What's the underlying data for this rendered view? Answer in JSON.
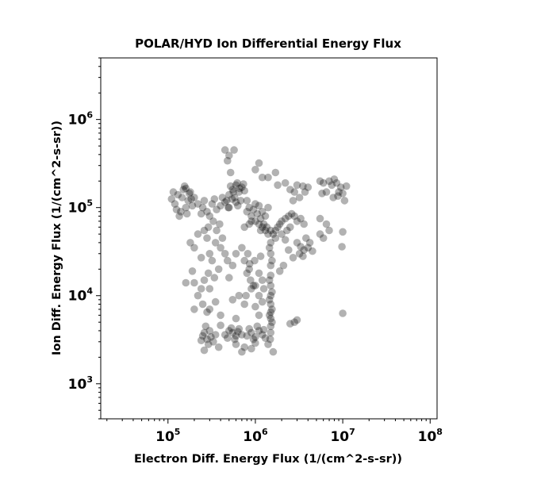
{
  "chart_data": {
    "type": "scatter",
    "title": "POLAR/HYD  Ion Differential Energy Flux",
    "xlabel": "Electron Diff. Energy Flux (1/(cm^2-s-sr))",
    "ylabel": "Ion Diff. Energy Flux (1/(cm^2-s-sr))",
    "xscale": "log",
    "yscale": "log",
    "xlim": [
      17000,
      120000000
    ],
    "ylim": [
      400,
      5000000
    ],
    "xticks": [
      {
        "value": 100000,
        "base": "10",
        "exp": "5"
      },
      {
        "value": 1000000,
        "base": "10",
        "exp": "6"
      },
      {
        "value": 10000000,
        "base": "10",
        "exp": "7"
      },
      {
        "value": 100000000,
        "base": "10",
        "exp": "8"
      }
    ],
    "yticks": [
      {
        "value": 1000,
        "base": "10",
        "exp": "3"
      },
      {
        "value": 10000,
        "base": "10",
        "exp": "4"
      },
      {
        "value": 100000,
        "base": "10",
        "exp": "5"
      },
      {
        "value": 1000000,
        "base": "10",
        "exp": "6"
      }
    ],
    "grid": false,
    "marker_color": "#000000",
    "marker_opacity": 0.3,
    "series": [
      {
        "points": [
          [
            150000.0,
            160000.0
          ],
          [
            130000.0,
            140000.0
          ],
          [
            170000.0,
            120000.0
          ],
          [
            120000.0,
            110000.0
          ],
          [
            160000.0,
            100000.0
          ],
          [
            140000.0,
            90000.0
          ],
          [
            180000.0,
            150000.0
          ],
          [
            200000.0,
            130000.0
          ],
          [
            110000.0,
            125000.0
          ],
          [
            155000.0,
            175000.0
          ],
          [
            135000.0,
            80000.0
          ],
          [
            165000.0,
            85000.0
          ],
          [
            190000.0,
            105000.0
          ],
          [
            220000.0,
            110000.0
          ],
          [
            145000.0,
            130000.0
          ],
          [
            175000.0,
            145000.0
          ],
          [
            125000.0,
            95000.0
          ],
          [
            115000.0,
            150000.0
          ],
          [
            160000.0,
            165000.0
          ],
          [
            185000.0,
            125000.0
          ],
          [
            250000.0,
            100000.0
          ],
          [
            280000.0,
            90000.0
          ],
          [
            320000.0,
            110000.0
          ],
          [
            360000.0,
            95000.0
          ],
          [
            400000.0,
            105000.0
          ],
          [
            450000.0,
            115000.0
          ],
          [
            240000.0,
            85000.0
          ],
          [
            300000.0,
            80000.0
          ],
          [
            260000.0,
            120000.0
          ],
          [
            340000.0,
            125000.0
          ],
          [
            500000.0,
            140000.0
          ],
          [
            550000.0,
            160000.0
          ],
          [
            600000.0,
            180000.0
          ],
          [
            650000.0,
            150000.0
          ],
          [
            700000.0,
            170000.0
          ],
          [
            580000.0,
            130000.0
          ],
          [
            680000.0,
            120000.0
          ],
          [
            520000.0,
            175000.0
          ],
          [
            620000.0,
            190000.0
          ],
          [
            730000.0,
            185000.0
          ],
          [
            470000.0,
            120000.0
          ],
          [
            630000.0,
            105000.0
          ],
          [
            750000.0,
            155000.0
          ],
          [
            560000.0,
            150000.0
          ],
          [
            660000.0,
            165000.0
          ],
          [
            490000.0,
            100000.0
          ],
          [
            540000.0,
            125000.0
          ],
          [
            420000.0,
            130000.0
          ],
          [
            500000.0,
            100000.0
          ],
          [
            600000.0,
            115000.0
          ],
          [
            800000.0,
            90000.0
          ],
          [
            900000.0,
            80000.0
          ],
          [
            1000000.0,
            70000.0
          ],
          [
            1100000.0,
            65000.0
          ],
          [
            1200000.0,
            60000.0
          ],
          [
            1300000.0,
            55000.0
          ],
          [
            1400000.0,
            50000.0
          ],
          [
            850000.0,
            100000.0
          ],
          [
            950000.0,
            95000.0
          ],
          [
            1050000.0,
            85000.0
          ],
          [
            1150000.0,
            75000.0
          ],
          [
            1250000.0,
            65000.0
          ],
          [
            1350000.0,
            60000.0
          ],
          [
            1500000.0,
            55000.0
          ],
          [
            1600000.0,
            50000.0
          ],
          [
            1700000.0,
            55000.0
          ],
          [
            1800000.0,
            60000.0
          ],
          [
            1900000.0,
            65000.0
          ],
          [
            2000000.0,
            70000.0
          ],
          [
            2200000.0,
            75000.0
          ],
          [
            2400000.0,
            80000.0
          ],
          [
            2600000.0,
            85000.0
          ],
          [
            2800000.0,
            80000.0
          ],
          [
            3000000.0,
            70000.0
          ],
          [
            3300000.0,
            75000.0
          ],
          [
            3600000.0,
            65000.0
          ],
          [
            2500000.0,
            60000.0
          ],
          [
            2000000.0,
            50000.0
          ],
          [
            2300000.0,
            55000.0
          ],
          [
            1700000.0,
            45000.0
          ],
          [
            1400000.0,
            100000.0
          ],
          [
            1200000.0,
            90000.0
          ],
          [
            1000000.0,
            110000.0
          ],
          [
            800000.0,
            120000.0
          ],
          [
            1100000.0,
            105000.0
          ],
          [
            1300000.0,
            80000.0
          ],
          [
            900000.0,
            70000.0
          ],
          [
            750000.0,
            60000.0
          ],
          [
            850000.0,
            65000.0
          ],
          [
            1150000.0,
            55000.0
          ],
          [
            1500000.0,
            40000.0
          ],
          [
            1500000.0,
            30000.0
          ],
          [
            1500000.0,
            22000.0
          ],
          [
            1500000.0,
            17000.0
          ],
          [
            1500000.0,
            13000.0
          ],
          [
            1500000.0,
            10000.0
          ],
          [
            1500000.0,
            8000.0
          ],
          [
            1500000.0,
            6500.0
          ],
          [
            1500000.0,
            5500.0
          ],
          [
            1500000.0,
            4500.0
          ],
          [
            1450000.0,
            35000.0
          ],
          [
            1550000.0,
            25000.0
          ],
          [
            1450000.0,
            15000.0
          ],
          [
            1550000.0,
            11000.0
          ],
          [
            1450000.0,
            9000.0
          ],
          [
            1550000.0,
            7000.0
          ],
          [
            1450000.0,
            6000.0
          ],
          [
            1550000.0,
            5000.0
          ],
          [
            1500000.0,
            3800.0
          ],
          [
            1480000.0,
            3200.0
          ],
          [
            250000.0,
            3500.0
          ],
          [
            280000.0,
            3200.0
          ],
          [
            300000.0,
            4000.0
          ],
          [
            330000.0,
            3000.0
          ],
          [
            260000.0,
            3800.0
          ],
          [
            290000.0,
            2800.0
          ],
          [
            350000.0,
            3600.0
          ],
          [
            270000.0,
            4500.0
          ],
          [
            310000.0,
            3400.0
          ],
          [
            240000.0,
            3100.0
          ],
          [
            450000.0,
            3600.0
          ],
          [
            500000.0,
            4000.0
          ],
          [
            550000.0,
            3800.0
          ],
          [
            600000.0,
            3500.0
          ],
          [
            650000.0,
            4200.0
          ],
          [
            700000.0,
            3600.0
          ],
          [
            480000.0,
            3300.0
          ],
          [
            530000.0,
            4300.0
          ],
          [
            580000.0,
            3200.0
          ],
          [
            630000.0,
            3900.0
          ],
          [
            800000.0,
            3500.0
          ],
          [
            900000.0,
            3800.0
          ],
          [
            1000000.0,
            3400.0
          ],
          [
            1100000.0,
            4000.0
          ],
          [
            1200000.0,
            3600.0
          ],
          [
            1300000.0,
            3300.0
          ],
          [
            850000.0,
            4200.0
          ],
          [
            950000.0,
            3200.0
          ],
          [
            1050000.0,
            4500.0
          ],
          [
            1250000.0,
            4100.0
          ],
          [
            600000.0,
            2800.0
          ],
          [
            750000.0,
            2600.0
          ],
          [
            1400000.0,
            2800.0
          ],
          [
            380000.0,
            2600.0
          ],
          [
            260000.0,
            2400.0
          ],
          [
            700000.0,
            2300.0
          ],
          [
            900000.0,
            2500.0
          ],
          [
            1000000.0,
            2900.0
          ],
          [
            1600000.0,
            2300.0
          ],
          [
            400000.0,
            4600.0
          ],
          [
            850000.0,
            20000.0
          ],
          [
            880000.0,
            15000.0
          ],
          [
            900000.0,
            12000.0
          ],
          [
            800000.0,
            18000.0
          ],
          [
            750000.0,
            25000.0
          ],
          [
            780000.0,
            10000.0
          ],
          [
            950000.0,
            13000.0
          ],
          [
            820000.0,
            30000.0
          ],
          [
            700000.0,
            35000.0
          ],
          [
            860000.0,
            23000.0
          ],
          [
            300000.0,
            30000.0
          ],
          [
            350000.0,
            40000.0
          ],
          [
            400000.0,
            35000.0
          ],
          [
            320000.0,
            25000.0
          ],
          [
            450000.0,
            30000.0
          ],
          [
            380000.0,
            20000.0
          ],
          [
            420000.0,
            45000.0
          ],
          [
            280000.0,
            45000.0
          ],
          [
            360000.0,
            55000.0
          ],
          [
            480000.0,
            25000.0
          ],
          [
            260000.0,
            15000.0
          ],
          [
            290000.0,
            18000.0
          ],
          [
            340000.0,
            16000.0
          ],
          [
            240000.0,
            12000.0
          ],
          [
            220000.0,
            10000.0
          ],
          [
            300000.0,
            12000.0
          ],
          [
            200000.0,
            14000.0
          ],
          [
            500000.0,
            16000.0
          ],
          [
            550000.0,
            22000.0
          ],
          [
            600000.0,
            30000.0
          ],
          [
            450000.0,
            450000.0
          ],
          [
            500000.0,
            390000.0
          ],
          [
            480000.0,
            340000.0
          ],
          [
            570000.0,
            450000.0
          ],
          [
            520000.0,
            250000.0
          ],
          [
            1000000.0,
            270000.0
          ],
          [
            1100000.0,
            320000.0
          ],
          [
            1200000.0,
            220000.0
          ],
          [
            1400000.0,
            220000.0
          ],
          [
            1700000.0,
            250000.0
          ],
          [
            1800000.0,
            180000.0
          ],
          [
            2200000.0,
            190000.0
          ],
          [
            2500000.0,
            160000.0
          ],
          [
            3000000.0,
            180000.0
          ],
          [
            3500000.0,
            175000.0
          ],
          [
            4000000.0,
            170000.0
          ],
          [
            2800000.0,
            150000.0
          ],
          [
            3700000.0,
            150000.0
          ],
          [
            3200000.0,
            130000.0
          ],
          [
            2700000.0,
            120000.0
          ],
          [
            5500000.0,
            200000.0
          ],
          [
            6000000.0,
            190000.0
          ],
          [
            7000000.0,
            200000.0
          ],
          [
            7500000.0,
            180000.0
          ],
          [
            8000000.0,
            210000.0
          ],
          [
            8500000.0,
            190000.0
          ],
          [
            9500000.0,
            170000.0
          ],
          [
            11000000.0,
            175000.0
          ],
          [
            9000000.0,
            150000.0
          ],
          [
            10000000.0,
            145000.0
          ],
          [
            6500000.0,
            150000.0
          ],
          [
            5800000.0,
            145000.0
          ],
          [
            7800000.0,
            130000.0
          ],
          [
            8800000.0,
            135000.0
          ],
          [
            10500000.0,
            120000.0
          ],
          [
            5500000.0,
            75000.0
          ],
          [
            6500000.0,
            65000.0
          ],
          [
            7000000.0,
            55000.0
          ],
          [
            6000000.0,
            45000.0
          ],
          [
            5500000.0,
            50000.0
          ],
          [
            10000000.0,
            53000.0
          ],
          [
            9800000.0,
            36000.0
          ],
          [
            10000000.0,
            6300.0
          ],
          [
            3000000.0,
            5300.0
          ],
          [
            2800000.0,
            5000.0
          ],
          [
            2500000.0,
            4800.0
          ],
          [
            1900000.0,
            19000.0
          ],
          [
            2100000.0,
            22000.0
          ],
          [
            3200000.0,
            30000.0
          ],
          [
            3000000.0,
            40000.0
          ],
          [
            3600000.0,
            33000.0
          ],
          [
            4000000.0,
            35000.0
          ],
          [
            4500000.0,
            32000.0
          ],
          [
            3800000.0,
            45000.0
          ],
          [
            3300000.0,
            36000.0
          ],
          [
            4200000.0,
            40000.0
          ],
          [
            2700000.0,
            27000.0
          ],
          [
            2400000.0,
            33000.0
          ],
          [
            3500000.0,
            28000.0
          ],
          [
            2200000.0,
            43000.0
          ],
          [
            1100000.0,
            10000.0
          ],
          [
            1000000.0,
            7500.0
          ],
          [
            1200000.0,
            15000.0
          ],
          [
            1100000.0,
            18000.0
          ],
          [
            980000.0,
            25000.0
          ],
          [
            1150000.0,
            28000.0
          ],
          [
            1000000.0,
            13000.0
          ],
          [
            1250000.0,
            12000.0
          ],
          [
            1200000.0,
            8500.0
          ],
          [
            1100000.0,
            6000.0
          ],
          [
            600000.0,
            5500.0
          ],
          [
            400000.0,
            6000.0
          ],
          [
            300000.0,
            7000.0
          ],
          [
            350000.0,
            8500.0
          ],
          [
            250000.0,
            8000.0
          ],
          [
            200000.0,
            7000.0
          ],
          [
            550000.0,
            9000.0
          ],
          [
            650000.0,
            10000.0
          ],
          [
            750000.0,
            8000.0
          ],
          [
            280000.0,
            6500.0
          ],
          [
            160000.0,
            14000.0
          ],
          [
            190000.0,
            19000.0
          ],
          [
            240000.0,
            27000.0
          ],
          [
            200000.0,
            35000.0
          ],
          [
            220000.0,
            50000.0
          ],
          [
            260000.0,
            55000.0
          ],
          [
            180000.0,
            40000.0
          ],
          [
            330000.0,
            70000.0
          ],
          [
            290000.0,
            60000.0
          ],
          [
            390000.0,
            65000.0
          ]
        ]
      }
    ]
  }
}
